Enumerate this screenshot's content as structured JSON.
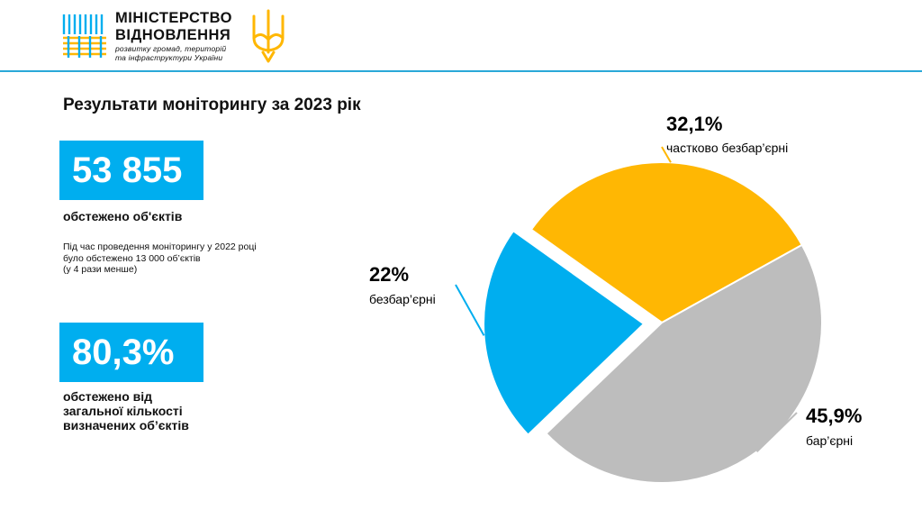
{
  "header": {
    "logo_line1": "МІНІСТЕРСТВО",
    "logo_line2": "ВІДНОВЛЕННЯ",
    "logo_sub_line1": "розвитку громад, територій",
    "logo_sub_line2": "та інфраструктури України",
    "logo_icon": "ministry-logo-icon",
    "emblem_icon": "trident-icon"
  },
  "colors": {
    "accent_blue": "#00aeef",
    "accent_yellow": "#ffb703",
    "gray": "#bdbdbd",
    "divider": "#2aa8d8"
  },
  "slide": {
    "title": "Результати моніторингу за 2023 рік",
    "stat1": {
      "value": "53 855",
      "label": "обстежено об'єктів"
    },
    "note": [
      "Під час проведення моніторингу у 2022 році",
      "було обстежено 13 000 об’єктів",
      "(у 4 рази менше)"
    ],
    "stat2": {
      "value": "80,3%",
      "label_lines": [
        "обстежено від",
        "загальної кількості",
        "визначених об’єктів"
      ]
    }
  },
  "chart_data": {
    "type": "pie",
    "title": "",
    "slices": [
      {
        "name": "бар’єрні",
        "value": 45.9,
        "label": "45,9%",
        "color": "#bdbdbd"
      },
      {
        "name": "безбар’єрні",
        "value": 22.0,
        "label": "22%",
        "color": "#00aeef",
        "exploded": true
      },
      {
        "name": "частково безбар’єрні",
        "value": 32.1,
        "label": "32,1%",
        "color": "#ffb703"
      }
    ]
  }
}
